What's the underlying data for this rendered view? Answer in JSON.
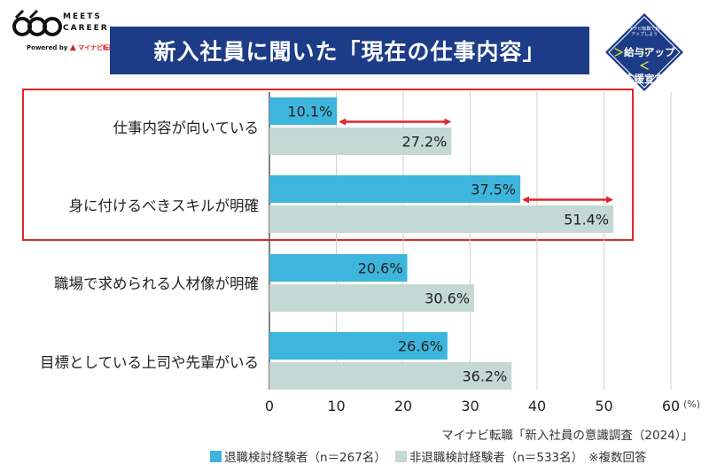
{
  "brand": {
    "logo_word1": "MEETS",
    "logo_word2": "CAREER",
    "powered_prefix": "Powered by",
    "powered_brand": "マイナビ転職"
  },
  "title": "新入社員に聞いた「現在の仕事内容」",
  "badge": {
    "small_text": "マイナビ転職で給与アップしよう",
    "main_line1": "給与アップ",
    "main_line2": "応援宣言",
    "left_bracket": "＞",
    "right_bracket": "＜"
  },
  "colors": {
    "series_1": "#3eb5dc",
    "series_2": "#c4d8d4",
    "arrow": "#e0262a",
    "title_bg": "#1d3c87",
    "highlight": "#e0262a"
  },
  "legend": {
    "note": "※複数回答"
  },
  "source": "マイナビ転職「新入社員の意識調査（2024）」",
  "chart_data": {
    "type": "bar",
    "orientation": "horizontal",
    "categories": [
      "仕事内容が向いている",
      "身に付けるべきスキルが明確",
      "職場で求められる人材像が明確",
      "目標としている上司や先輩がいる"
    ],
    "series": [
      {
        "name": "退職検討経験者（n＝267名）",
        "values": [
          10.1,
          37.5,
          20.6,
          26.6
        ],
        "labels": [
          "10.1%",
          "37.5%",
          "20.6%",
          "26.6%"
        ]
      },
      {
        "name": "非退職検討経験者（n＝533名）",
        "values": [
          27.2,
          51.4,
          30.6,
          36.2
        ],
        "labels": [
          "27.2%",
          "51.4%",
          "30.6%",
          "36.2%"
        ]
      }
    ],
    "xlim": [
      0,
      60
    ],
    "xticks": [
      "0",
      "10",
      "20",
      "30",
      "40",
      "50",
      "60"
    ],
    "unit": "(%)",
    "grid": true,
    "legend": "bottom",
    "highlighted_categories": [
      0,
      1
    ]
  }
}
